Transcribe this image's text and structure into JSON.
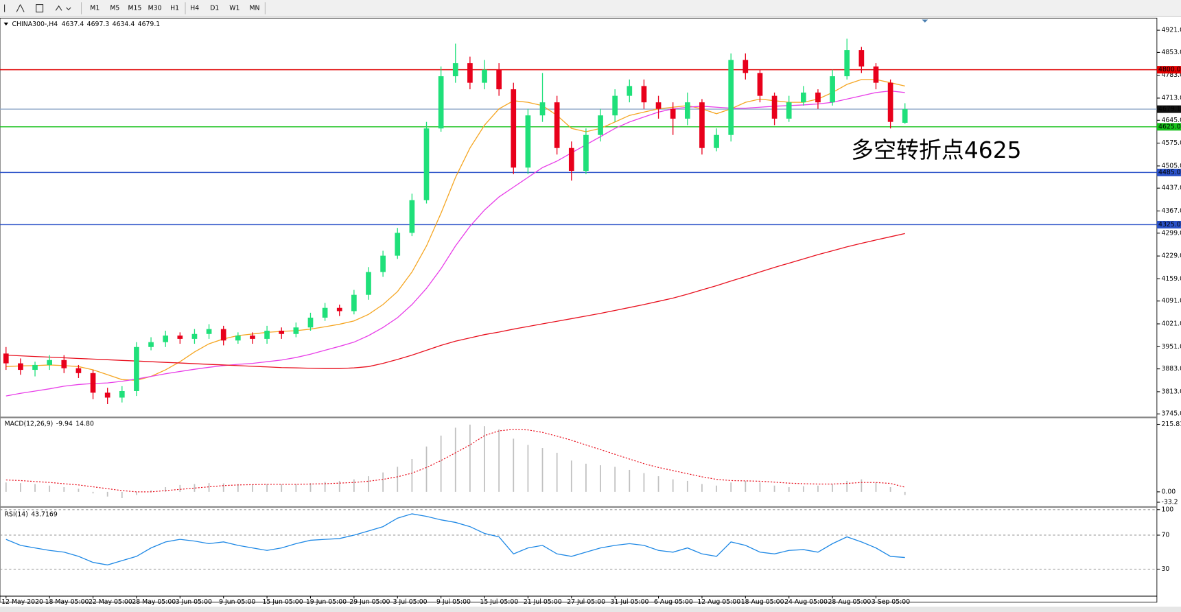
{
  "toolbar": [
    "M1",
    "M5",
    "M15",
    "M30",
    "H1",
    "H4",
    "D1",
    "W1",
    "MN"
  ],
  "chart_data": [
    {
      "type": "candlestick",
      "symbol": "CHINA300-,H4",
      "annotation": "多空转折点4625",
      "up_color": "#1fe07a",
      "down_color": "#e8001b",
      "categories": [
        "12 May 2020",
        null,
        null,
        "18 May 05:00",
        null,
        null,
        "22 May 05:00",
        null,
        null,
        "28 May 05:00",
        null,
        null,
        "3 Jun 05:00",
        null,
        null,
        "9 Jun 05:00",
        null,
        null,
        "15 Jun 05:00",
        null,
        null,
        "19 Jun 05:00",
        null,
        null,
        "29 Jun 05:00",
        null,
        null,
        "3 Jul 05:00",
        null,
        null,
        "9 Jul 05:00",
        null,
        null,
        "15 Jul 05:00",
        null,
        null,
        "21 Jul 05:00",
        null,
        null,
        "27 Jul 05:00",
        null,
        null,
        "31 Jul 05:00",
        null,
        null,
        "6 Aug 05:00",
        null,
        null,
        "12 Aug 05:00",
        null,
        null,
        "18 Aug 05:00",
        null,
        null,
        "24 Aug 05:00",
        null,
        null,
        "28 Aug 05:00",
        null,
        null,
        "3 Sep 05:00",
        null,
        null
      ],
      "open": [
        3930,
        3900,
        3880,
        3895,
        3910,
        3885,
        3870,
        3810,
        3795,
        3815,
        3950,
        3965,
        3985,
        3975,
        3990,
        4005,
        3970,
        3985,
        3975,
        4000,
        3990,
        4010,
        4040,
        4070,
        4060,
        4110,
        4180,
        4230,
        4300,
        4400,
        4620,
        4780,
        4820,
        4760,
        4800,
        4740,
        4500,
        4660,
        4700,
        4560,
        4490,
        4600,
        4660,
        4720,
        4750,
        4700,
        4680,
        4650,
        4700,
        4560,
        4600,
        4830,
        4790,
        4720,
        4650,
        4700,
        4730,
        4700,
        4780,
        4860,
        4810,
        4760,
        4637.4
      ],
      "high": [
        3950,
        3915,
        3905,
        3925,
        3925,
        3895,
        3880,
        3825,
        3830,
        3965,
        3980,
        4000,
        3995,
        4005,
        4020,
        4015,
        3995,
        3995,
        4015,
        4010,
        4025,
        4055,
        4085,
        4080,
        4125,
        4195,
        4245,
        4315,
        4420,
        4640,
        4810,
        4880,
        4840,
        4830,
        4820,
        4760,
        4680,
        4790,
        4720,
        4580,
        4620,
        4680,
        4740,
        4770,
        4770,
        4720,
        4700,
        4730,
        4710,
        4620,
        4850,
        4850,
        4800,
        4730,
        4720,
        4750,
        4740,
        4800,
        4895,
        4870,
        4820,
        4770,
        4697.3
      ],
      "low": [
        3880,
        3865,
        3860,
        3880,
        3870,
        3855,
        3790,
        3775,
        3780,
        3800,
        3940,
        3950,
        3960,
        3960,
        3975,
        3955,
        3960,
        3960,
        3960,
        3975,
        3980,
        4000,
        4030,
        4045,
        4050,
        4095,
        4165,
        4220,
        4290,
        4390,
        4610,
        4760,
        4740,
        4740,
        4720,
        4480,
        4480,
        4640,
        4540,
        4460,
        4480,
        4580,
        4640,
        4700,
        4680,
        4650,
        4600,
        4630,
        4540,
        4550,
        4580,
        4770,
        4700,
        4630,
        4640,
        4690,
        4680,
        4690,
        4770,
        4790,
        4740,
        4620,
        4634.4
      ],
      "close": [
        3900,
        3880,
        3895,
        3910,
        3885,
        3870,
        3810,
        3795,
        3815,
        3950,
        3965,
        3985,
        3975,
        3990,
        4005,
        3970,
        3985,
        3975,
        4000,
        3990,
        4010,
        4040,
        4070,
        4060,
        4110,
        4180,
        4230,
        4300,
        4400,
        4620,
        4780,
        4820,
        4760,
        4800,
        4740,
        4500,
        4660,
        4700,
        4560,
        4490,
        4600,
        4660,
        4720,
        4750,
        4700,
        4680,
        4650,
        4700,
        4560,
        4600,
        4830,
        4790,
        4720,
        4650,
        4700,
        4730,
        4700,
        4780,
        4860,
        4810,
        4760,
        4640,
        4679.1
      ],
      "overlays": [
        {
          "color": "#f5a623",
          "values": [
            3890,
            3892,
            3893,
            3895,
            3893,
            3890,
            3880,
            3865,
            3850,
            3848,
            3860,
            3880,
            3905,
            3935,
            3960,
            3975,
            3985,
            3990,
            3995,
            3998,
            4000,
            4005,
            4012,
            4020,
            4030,
            4050,
            4080,
            4120,
            4180,
            4260,
            4360,
            4470,
            4560,
            4630,
            4680,
            4705,
            4700,
            4690,
            4660,
            4620,
            4610,
            4620,
            4640,
            4660,
            4670,
            4680,
            4685,
            4690,
            4680,
            4665,
            4680,
            4700,
            4710,
            4705,
            4700,
            4700,
            4710,
            4730,
            4755,
            4770,
            4770,
            4760,
            4750
          ]
        },
        {
          "color": "#e83ee8",
          "values": [
            3800,
            3808,
            3815,
            3822,
            3830,
            3835,
            3838,
            3840,
            3845,
            3852,
            3860,
            3868,
            3875,
            3882,
            3888,
            3893,
            3897,
            3900,
            3905,
            3910,
            3918,
            3928,
            3940,
            3952,
            3965,
            3985,
            4010,
            4040,
            4080,
            4130,
            4190,
            4260,
            4320,
            4370,
            4410,
            4440,
            4470,
            4500,
            4520,
            4545,
            4570,
            4595,
            4620,
            4640,
            4655,
            4670,
            4680,
            4685,
            4688,
            4685,
            4682,
            4682,
            4685,
            4688,
            4690,
            4692,
            4695,
            4700,
            4710,
            4720,
            4730,
            4735,
            4730
          ]
        },
        {
          "color": "#e8101e",
          "values": [
            3925,
            3923,
            3921,
            3919,
            3917,
            3915,
            3913,
            3911,
            3909,
            3907,
            3905,
            3903,
            3901,
            3899,
            3897,
            3895,
            3893,
            3891,
            3889,
            3887,
            3886,
            3885,
            3884,
            3884,
            3886,
            3890,
            3900,
            3912,
            3925,
            3940,
            3955,
            3968,
            3978,
            3988,
            3996,
            4005,
            4013,
            4021,
            4029,
            4037,
            4045,
            4053,
            4062,
            4071,
            4080,
            4090,
            4100,
            4112,
            4125,
            4138,
            4152,
            4166,
            4180,
            4194,
            4207,
            4220,
            4233,
            4245,
            4257,
            4268,
            4278,
            4288,
            4298
          ]
        }
      ],
      "levels": [
        {
          "value": 4800,
          "label": "4800.0",
          "color": "#e00000",
          "box_color": "#e00000"
        },
        {
          "value": 4679.1,
          "label": "4679.1",
          "color": "#8ea7c7",
          "box_color": "#111111"
        },
        {
          "value": 4625,
          "label": "4625.0",
          "color": "#16c01a",
          "box_color": "#16c01a"
        },
        {
          "value": 4485,
          "label": "4485.0",
          "color": "#2b52c8",
          "box_color": "#2b52c8"
        },
        {
          "value": 4325,
          "label": "4325.0",
          "color": "#2b52c8",
          "box_color": "#2b52c8"
        }
      ],
      "ylim": [
        3740,
        4956
      ],
      "yticks": [
        {
          "value": 4921,
          "label": "4921.0"
        },
        {
          "value": 4853,
          "label": "4853.0"
        },
        {
          "value": 4783,
          "label": "4783.0"
        },
        {
          "value": 4713,
          "label": "4713.0"
        },
        {
          "value": 4645,
          "label": "4645.0"
        },
        {
          "value": 4575,
          "label": "4575.0"
        },
        {
          "value": 4505,
          "label": "4505.0"
        },
        {
          "value": 4437,
          "label": "4437.0"
        },
        {
          "value": 4367,
          "label": "4367.0"
        },
        {
          "value": 4299,
          "label": "4299.0"
        },
        {
          "value": 4229,
          "label": "4229.0"
        },
        {
          "value": 4159,
          "label": "4159.0"
        },
        {
          "value": 4091,
          "label": "4091.0"
        },
        {
          "value": 4021,
          "label": "4021.0"
        },
        {
          "value": 3951,
          "label": "3951.0"
        },
        {
          "value": 3883,
          "label": "3883.0"
        },
        {
          "value": 3813,
          "label": "3813.0"
        },
        {
          "value": 3745,
          "label": "3745.0"
        }
      ]
    },
    {
      "type": "macd",
      "title": "MACD(12,26,9)",
      "bar_color": "#c0c0c0",
      "signal_color": "#e8101e",
      "signal_label": "14.80",
      "main": [
        30,
        28,
        25,
        20,
        15,
        10,
        -5,
        -15,
        -20,
        -10,
        5,
        15,
        22,
        25,
        28,
        27,
        25,
        24,
        25,
        24,
        25,
        28,
        32,
        35,
        40,
        50,
        62,
        80,
        105,
        145,
        180,
        205,
        215,
        210,
        200,
        170,
        150,
        140,
        125,
        100,
        90,
        85,
        80,
        70,
        60,
        50,
        40,
        35,
        25,
        20,
        30,
        35,
        30,
        20,
        15,
        18,
        20,
        25,
        35,
        40,
        30,
        15,
        -9.94
      ],
      "signal": [
        38,
        36,
        33,
        30,
        26,
        22,
        16,
        10,
        4,
        0,
        0,
        4,
        8,
        12,
        16,
        20,
        22,
        23,
        24,
        24,
        24,
        25,
        26,
        28,
        30,
        34,
        40,
        48,
        60,
        78,
        100,
        125,
        150,
        180,
        195,
        200,
        198,
        190,
        178,
        165,
        150,
        135,
        120,
        105,
        90,
        78,
        68,
        58,
        48,
        40,
        36,
        35,
        34,
        31,
        28,
        26,
        25,
        25,
        27,
        30,
        30,
        27,
        14.8
      ],
      "ylim": [
        -40,
        232
      ],
      "yticks": [
        215.81,
        {
          "value": 0,
          "label": "0.00"
        },
        -33.2
      ]
    },
    {
      "type": "line",
      "title": "RSI(14)",
      "color": "#1e88e5",
      "grid": true,
      "values": [
        65,
        58,
        55,
        52,
        50,
        45,
        38,
        35,
        40,
        45,
        55,
        62,
        65,
        63,
        60,
        62,
        58,
        55,
        52,
        55,
        60,
        64,
        65,
        66,
        70,
        75,
        80,
        90,
        95,
        92,
        88,
        85,
        80,
        72,
        68,
        48,
        55,
        58,
        48,
        45,
        50,
        55,
        58,
        60,
        58,
        52,
        50,
        55,
        48,
        45,
        62,
        58,
        50,
        48,
        52,
        53,
        50,
        60,
        68,
        62,
        55,
        45,
        43.7169
      ],
      "ylim": [
        0,
        100
      ],
      "yticks": [
        100,
        70,
        30
      ]
    }
  ]
}
